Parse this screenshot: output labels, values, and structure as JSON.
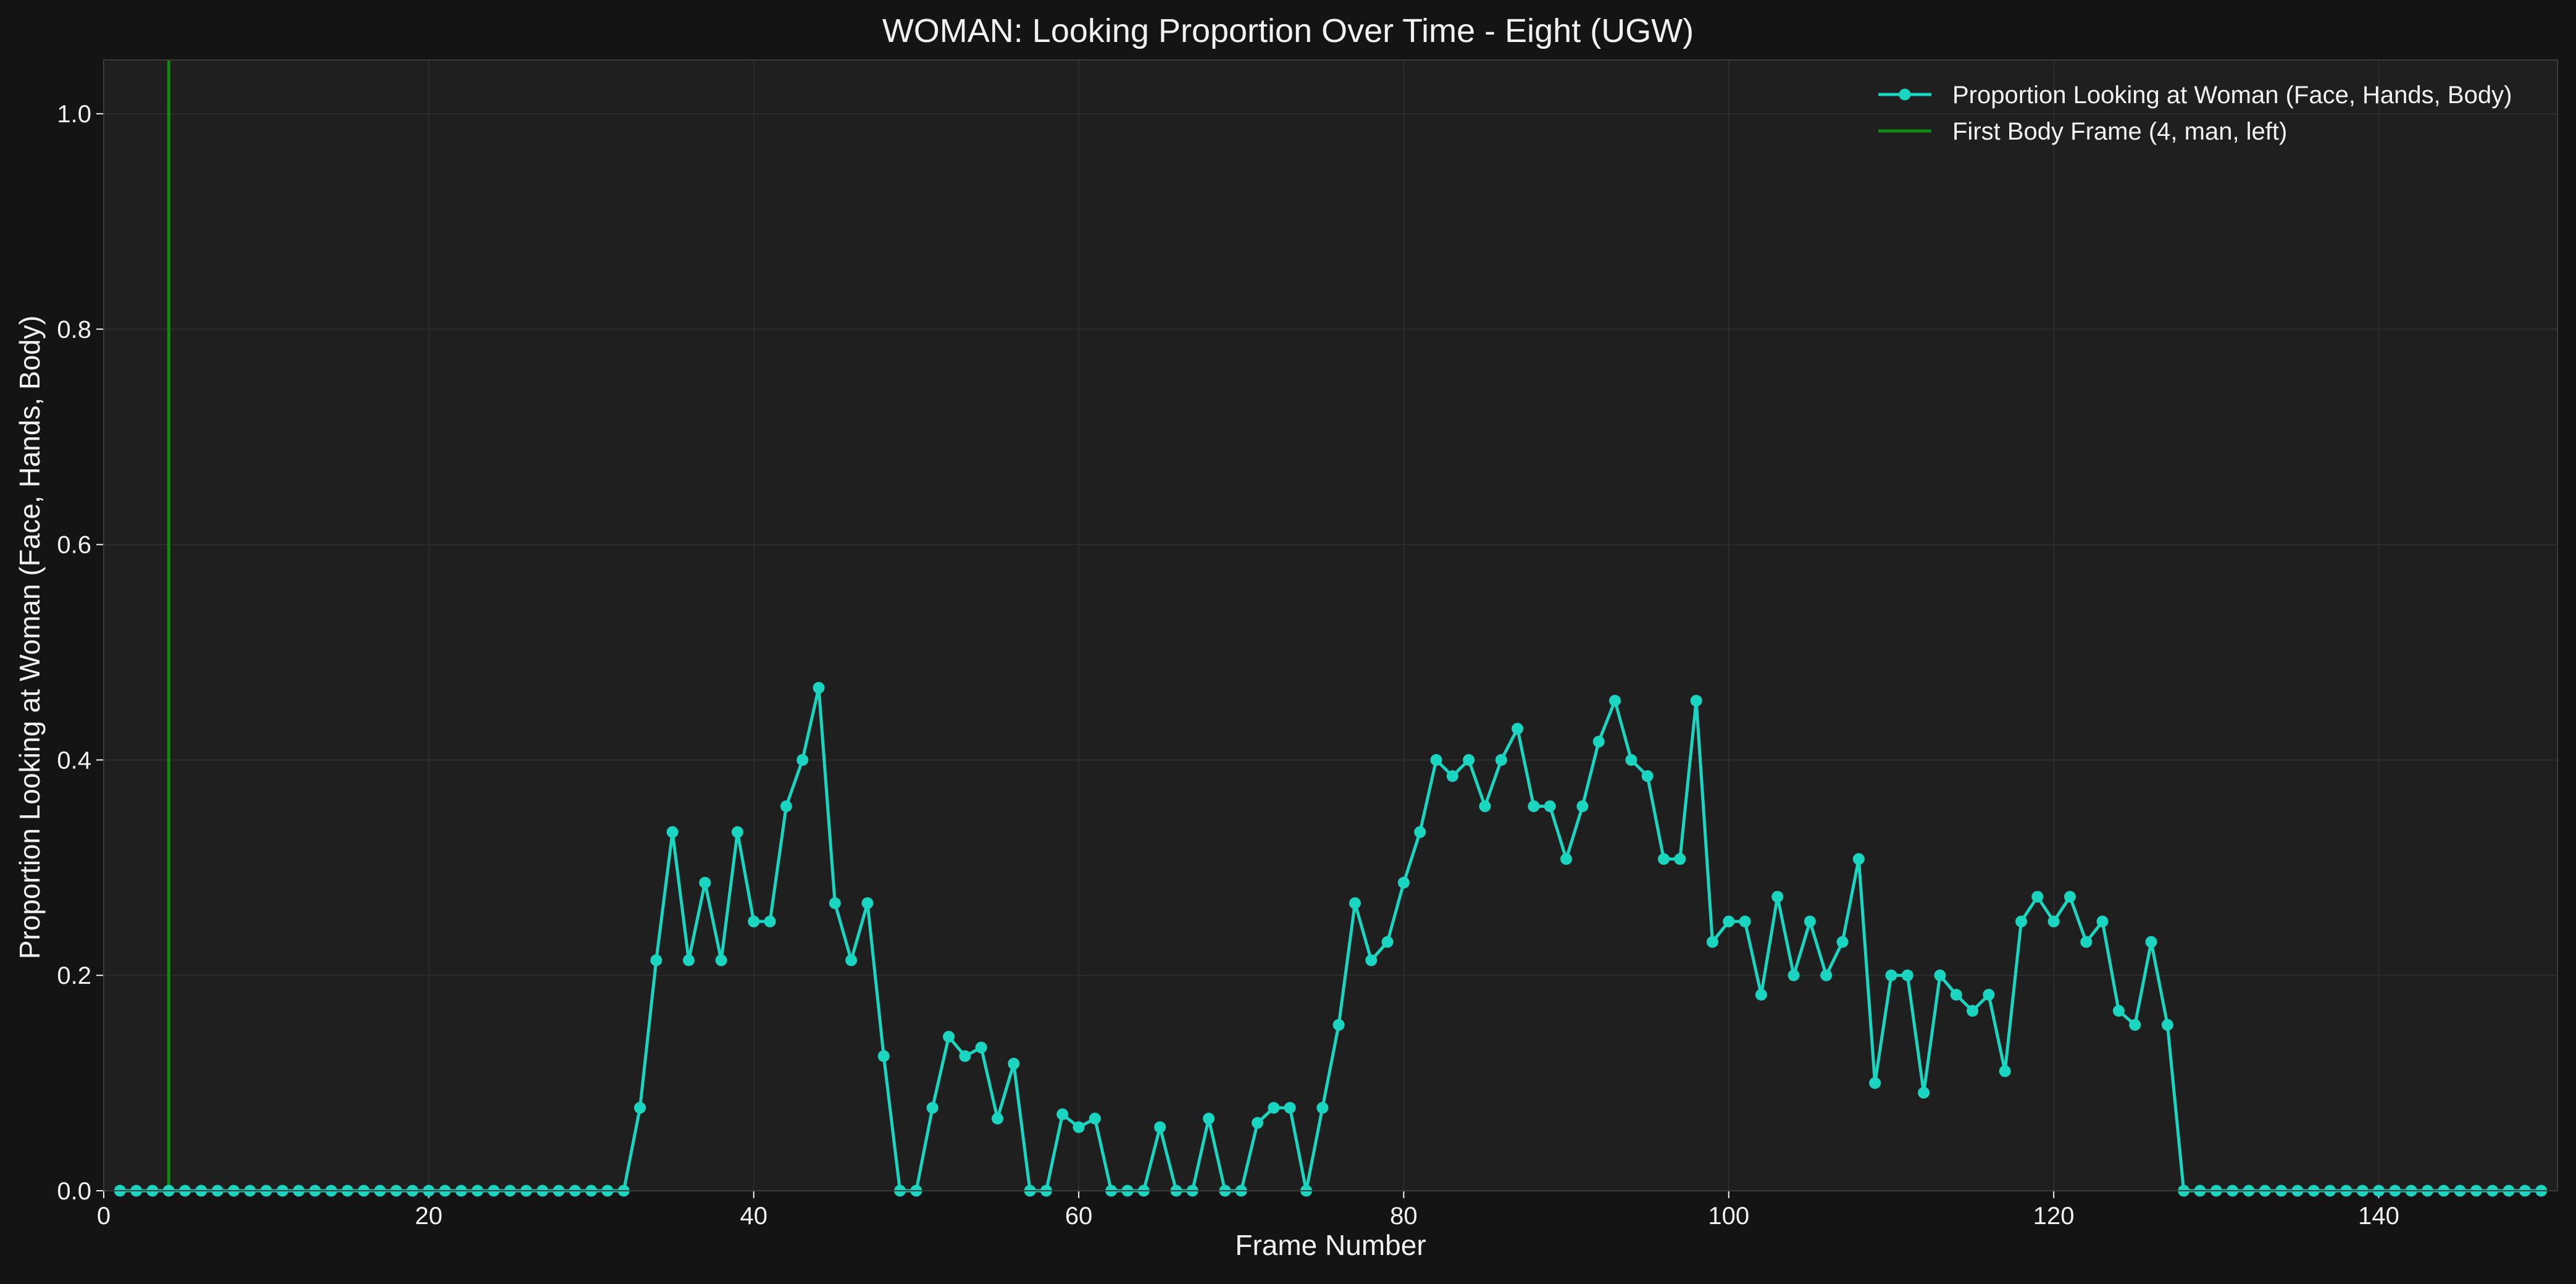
{
  "chart_data": {
    "type": "line",
    "title": "WOMAN: Looking Proportion Over Time - Eight (UGW)",
    "xlabel": "Frame Number",
    "ylabel": "Proportion Looking at Woman (Face, Hands, Body)",
    "xlim": [
      0,
      151
    ],
    "ylim": [
      0,
      1.05
    ],
    "x_ticks": [
      0,
      20,
      40,
      60,
      80,
      100,
      120,
      140
    ],
    "x_tick_labels": [
      "0",
      "20",
      "40",
      "60",
      "80",
      "100",
      "120",
      "140"
    ],
    "y_ticks": [
      0.0,
      0.2,
      0.4,
      0.6,
      0.8,
      1.0
    ],
    "y_tick_labels": [
      "0.0",
      "0.2",
      "0.4",
      "0.6",
      "0.8",
      "1.0"
    ],
    "grid": true,
    "legend_position": "top-right",
    "colors": {
      "figure_background": "#141414",
      "plot_background": "#1f1f1f",
      "grid": "#2d2d2d",
      "text": "#f2f2f2",
      "series": "#1ad6c1",
      "vline": "#0f8a0f"
    },
    "series": [
      {
        "name": "Proportion Looking at Woman (Face, Hands, Body)",
        "x": [
          1,
          2,
          3,
          4,
          5,
          6,
          7,
          8,
          9,
          10,
          11,
          12,
          13,
          14,
          15,
          16,
          17,
          18,
          19,
          20,
          21,
          22,
          23,
          24,
          25,
          26,
          27,
          28,
          29,
          30,
          31,
          32,
          33,
          34,
          35,
          36,
          37,
          38,
          39,
          40,
          41,
          42,
          43,
          44,
          45,
          46,
          47,
          48,
          49,
          50,
          51,
          52,
          53,
          54,
          55,
          56,
          57,
          58,
          59,
          60,
          61,
          62,
          63,
          64,
          65,
          66,
          67,
          68,
          69,
          70,
          71,
          72,
          73,
          74,
          75,
          76,
          77,
          78,
          79,
          80,
          81,
          82,
          83,
          84,
          85,
          86,
          87,
          88,
          89,
          90,
          91,
          92,
          93,
          94,
          95,
          96,
          97,
          98,
          99,
          100,
          101,
          102,
          103,
          104,
          105,
          106,
          107,
          108,
          109,
          110,
          111,
          112,
          113,
          114,
          115,
          116,
          117,
          118,
          119,
          120,
          121,
          122,
          123,
          124,
          125,
          126,
          127,
          128,
          129,
          130,
          131,
          132,
          133,
          134,
          135,
          136,
          137,
          138,
          139,
          140,
          141,
          142,
          143,
          144,
          145,
          146,
          147,
          148,
          149,
          150
        ],
        "y": [
          0,
          0,
          0,
          0,
          0,
          0,
          0,
          0,
          0,
          0,
          0,
          0,
          0,
          0,
          0,
          0,
          0,
          0,
          0,
          0,
          0,
          0,
          0,
          0,
          0,
          0,
          0,
          0,
          0,
          0,
          0,
          0,
          0.077,
          0.214,
          0.333,
          0.214,
          0.286,
          0.214,
          0.333,
          0.25,
          0.25,
          0.357,
          0.4,
          0.467,
          0.267,
          0.214,
          0.267,
          0.125,
          0,
          0,
          0.077,
          0.143,
          0.125,
          0.133,
          0.067,
          0.118,
          0,
          0,
          0.071,
          0.059,
          0.067,
          0,
          0,
          0,
          0.059,
          0,
          0,
          0.067,
          0,
          0,
          0.063,
          0.077,
          0.077,
          0,
          0.077,
          0.154,
          0.267,
          0.214,
          0.231,
          0.286,
          0.333,
          0.4,
          0.385,
          0.4,
          0.357,
          0.4,
          0.429,
          0.357,
          0.357,
          0.308,
          0.357,
          0.417,
          0.455,
          0.4,
          0.385,
          0.308,
          0.308,
          0.455,
          0.231,
          0.25,
          0.25,
          0.182,
          0.273,
          0.2,
          0.25,
          0.2,
          0.231,
          0.308,
          0.1,
          0.2,
          0.2,
          0.091,
          0.2,
          0.182,
          0.167,
          0.182,
          0.111,
          0.25,
          0.273,
          0.25,
          0.273,
          0.231,
          0.25,
          0.167,
          0.154,
          0.231,
          0.154,
          0,
          0,
          0,
          0,
          0,
          0,
          0,
          0,
          0,
          0,
          0,
          0,
          0,
          0,
          0,
          0,
          0,
          0,
          0,
          0,
          0,
          0,
          0
        ]
      }
    ],
    "vlines": [
      {
        "name": "First Body Frame (4, man, left)",
        "x": 4
      }
    ]
  }
}
